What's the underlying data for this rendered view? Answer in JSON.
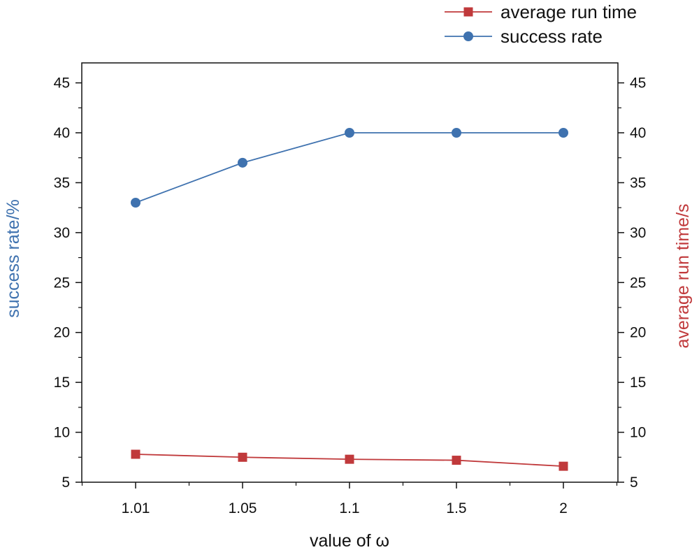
{
  "chart_data": {
    "type": "line",
    "x_categories": [
      "1.01",
      "1.05",
      "1.1",
      "1.5",
      "2"
    ],
    "xlabel": "value of ω",
    "ylabel_left": "success rate/%",
    "ylabel_right": "average run time/s",
    "ylim": [
      5,
      47
    ],
    "yticks": [
      5,
      10,
      15,
      20,
      25,
      30,
      35,
      40,
      45
    ],
    "grid": false,
    "legend_position": "top-right, above plot",
    "series": [
      {
        "name": "average run time",
        "axis": "right",
        "marker": "square",
        "color": "#c0393b",
        "values": [
          7.8,
          7.5,
          7.3,
          7.2,
          6.6
        ]
      },
      {
        "name": "success rate",
        "axis": "left",
        "marker": "circle",
        "color": "#3f72af",
        "values": [
          33,
          37,
          40,
          40,
          40
        ]
      }
    ],
    "colors": {
      "left_axis_title": "#3f72af",
      "right_axis_title": "#c0393b",
      "axes": "#111111"
    }
  }
}
